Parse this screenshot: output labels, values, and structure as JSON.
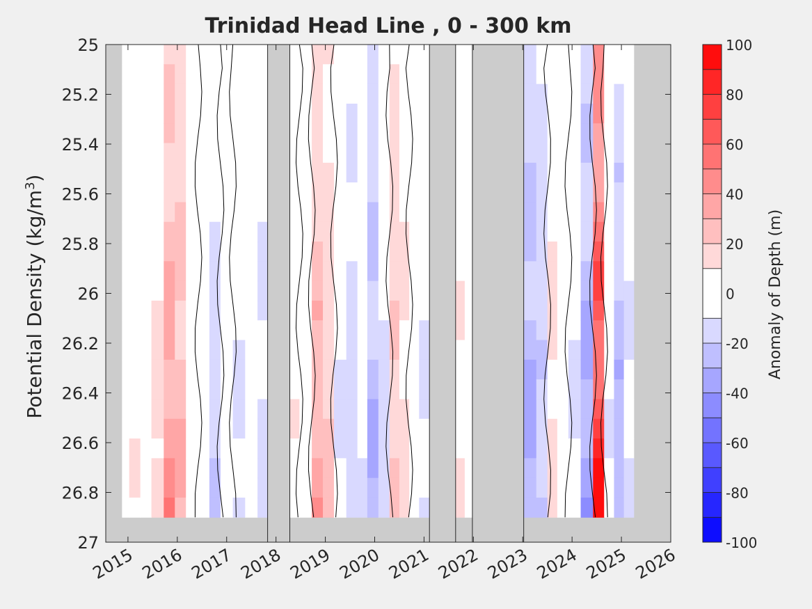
{
  "chart_data": {
    "type": "heatmap",
    "title": "Trinidad Head Line , 0 - 300 km",
    "xlabel": "",
    "ylabel": "Potential Density (kg/m",
    "ylabel_superscript": "3",
    "ylabel_suffix": ")",
    "x_ticks": [
      2015,
      2016,
      2017,
      2018,
      2019,
      2020,
      2021,
      2022,
      2023,
      2024,
      2025,
      2026
    ],
    "x_tick_labels": [
      "2015",
      "2016",
      "2017",
      "2018",
      "2019",
      "2020",
      "2021",
      "2022",
      "2023",
      "2024",
      "2025",
      "2026"
    ],
    "xlim": [
      2014.55,
      2026.0
    ],
    "y_ticks": [
      25,
      25.2,
      25.4,
      25.6,
      25.8,
      26,
      26.2,
      26.4,
      26.6,
      26.8,
      27
    ],
    "y_tick_labels": [
      "25",
      "25.2",
      "25.4",
      "25.6",
      "25.8",
      "26",
      "26.2",
      "26.4",
      "26.6",
      "26.8",
      "27"
    ],
    "ylim": [
      25,
      27
    ],
    "y_reversed": true,
    "data_ylim": [
      25,
      26.9
    ],
    "data_xlim": [
      2014.88,
      2025.25
    ],
    "no_data_color": "#cccccc",
    "no_data_boxes": [
      {
        "x0": 2017.83,
        "x1": 2018.28
      },
      {
        "x0": 2021.11,
        "x1": 2021.64
      },
      {
        "x0": 2021.98,
        "x1": 2023.02
      }
    ],
    "colorbar": {
      "label": "Anomaly of Depth (m)",
      "min": -100,
      "max": 100,
      "ticks": [
        100,
        80,
        60,
        40,
        20,
        0,
        -20,
        -40,
        -60,
        -80,
        -100
      ],
      "tick_labels": [
        "100",
        "80",
        "60",
        "40",
        "20",
        "0",
        "-20",
        "-40",
        "-60",
        "-80",
        "-100"
      ],
      "levels": [
        -100,
        -90,
        -80,
        -70,
        -60,
        -50,
        -40,
        -30,
        -20,
        -10,
        10,
        20,
        30,
        40,
        50,
        60,
        70,
        80,
        90,
        100
      ]
    },
    "anomaly_columns": [
      {
        "t": 2014.9,
        "anomaly": 5
      },
      {
        "t": 2015.15,
        "anomaly": 8
      },
      {
        "t": 2015.35,
        "anomaly": 3
      },
      {
        "t": 2015.6,
        "anomaly": 12
      },
      {
        "t": 2015.85,
        "anomaly": 35
      },
      {
        "t": 2016.05,
        "anomaly": 25
      },
      {
        "t": 2016.3,
        "anomaly": 8
      },
      {
        "t": 2016.55,
        "anomaly": -5
      },
      {
        "t": 2016.75,
        "anomaly": -15
      },
      {
        "t": 2017.0,
        "anomaly": 6
      },
      {
        "t": 2017.25,
        "anomaly": -10
      },
      {
        "t": 2017.5,
        "anomaly": -3
      },
      {
        "t": 2017.75,
        "anomaly": -12
      },
      {
        "t": 2018.35,
        "anomaly": 8
      },
      {
        "t": 2018.6,
        "anomaly": -8
      },
      {
        "t": 2018.85,
        "anomaly": 28
      },
      {
        "t": 2019.05,
        "anomaly": 18
      },
      {
        "t": 2019.3,
        "anomaly": -10
      },
      {
        "t": 2019.55,
        "anomaly": -15
      },
      {
        "t": 2019.75,
        "anomaly": -8
      },
      {
        "t": 2019.95,
        "anomaly": -25
      },
      {
        "t": 2020.2,
        "anomaly": -12
      },
      {
        "t": 2020.4,
        "anomaly": 20
      },
      {
        "t": 2020.6,
        "anomaly": 12
      },
      {
        "t": 2020.8,
        "anomaly": -6
      },
      {
        "t": 2021.0,
        "anomaly": -10
      },
      {
        "t": 2021.75,
        "anomaly": 10
      },
      {
        "t": 2021.9,
        "anomaly": 4
      },
      {
        "t": 2023.15,
        "anomaly": -28
      },
      {
        "t": 2023.4,
        "anomaly": -18
      },
      {
        "t": 2023.6,
        "anomaly": 12
      },
      {
        "t": 2023.8,
        "anomaly": 5
      },
      {
        "t": 2024.05,
        "anomaly": -10
      },
      {
        "t": 2024.3,
        "anomaly": -30
      },
      {
        "t": 2024.55,
        "anomaly": 70
      },
      {
        "t": 2024.75,
        "anomaly": -8
      },
      {
        "t": 2024.95,
        "anomaly": -25
      },
      {
        "t": 2025.15,
        "anomaly": -10
      }
    ]
  }
}
